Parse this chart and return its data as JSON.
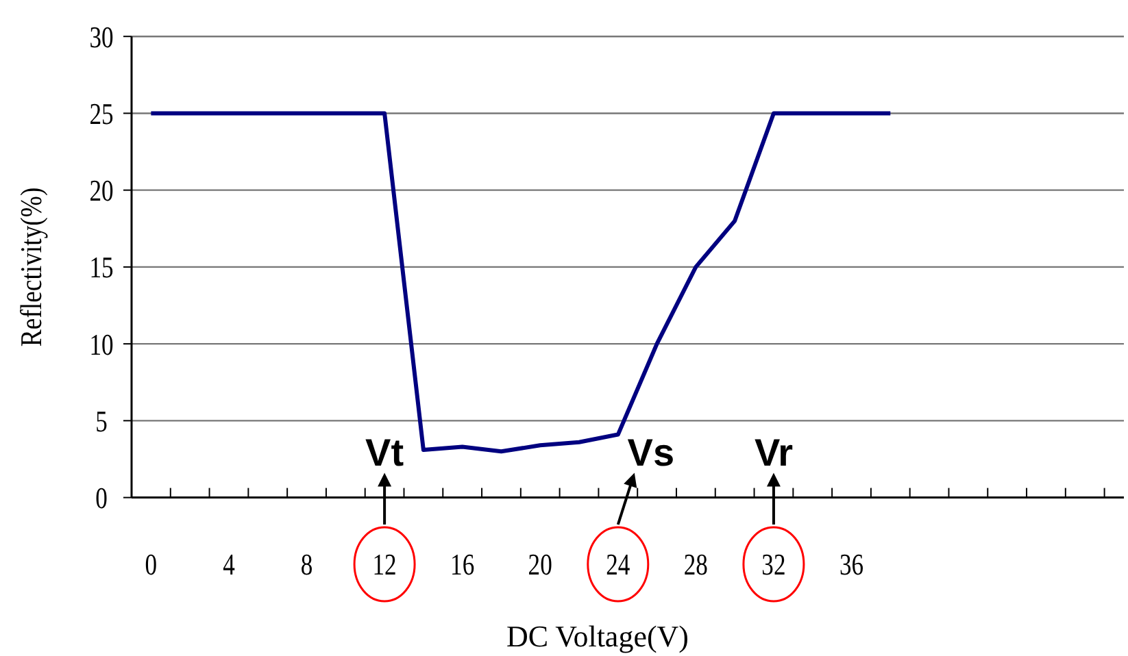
{
  "chart_data": {
    "type": "line",
    "xlabel": "DC  Voltage(V)",
    "ylabel": "Reflectivity(%)",
    "x": [
      0,
      2,
      4,
      6,
      8,
      10,
      12,
      14,
      16,
      18,
      20,
      22,
      24,
      26,
      28,
      30,
      32,
      34,
      36,
      38
    ],
    "series": [
      {
        "color": "#000080",
        "values": [
          25,
          25,
          25,
          25,
          25,
          25,
          25,
          3.1,
          3.3,
          3.0,
          3.4,
          3.6,
          4.1,
          10,
          15,
          18,
          25,
          25,
          25,
          25
        ]
      }
    ],
    "xlim": [
      -1,
      50
    ],
    "xticks": [
      0,
      4,
      8,
      12,
      16,
      20,
      24,
      28,
      32,
      36,
      {
        "value": 1,
        "label": null
      },
      {
        "value": 3,
        "label": null
      },
      {
        "value": 5,
        "label": null
      },
      {
        "value": 7,
        "label": null
      },
      {
        "value": 9,
        "label": null
      },
      {
        "value": 11,
        "label": null
      },
      {
        "value": 13,
        "label": null
      },
      {
        "value": 15,
        "label": null
      },
      {
        "value": 17,
        "label": null
      },
      {
        "value": 19,
        "label": null
      },
      {
        "value": 21,
        "label": null
      },
      {
        "value": 23,
        "label": null
      },
      {
        "value": 25,
        "label": null
      },
      {
        "value": 27,
        "label": null
      },
      {
        "value": 29,
        "label": null
      },
      {
        "value": 31,
        "label": null
      },
      {
        "value": 33,
        "label": null
      },
      {
        "value": 35,
        "label": null
      },
      {
        "value": 37,
        "label": null
      },
      {
        "value": 39,
        "label": null
      },
      {
        "value": 41,
        "label": null
      },
      {
        "value": 43,
        "label": null
      },
      {
        "value": 45,
        "label": null
      },
      {
        "value": 47,
        "label": null
      },
      {
        "value": 49,
        "label": null
      }
    ],
    "ylim": [
      0,
      30
    ],
    "yticks": [
      0,
      5,
      10,
      15,
      20,
      25,
      30
    ],
    "grid": "y",
    "marker": "none",
    "line_style": "solid",
    "annotations": [
      "Vt",
      "Vs",
      "Vr"
    ]
  }
}
